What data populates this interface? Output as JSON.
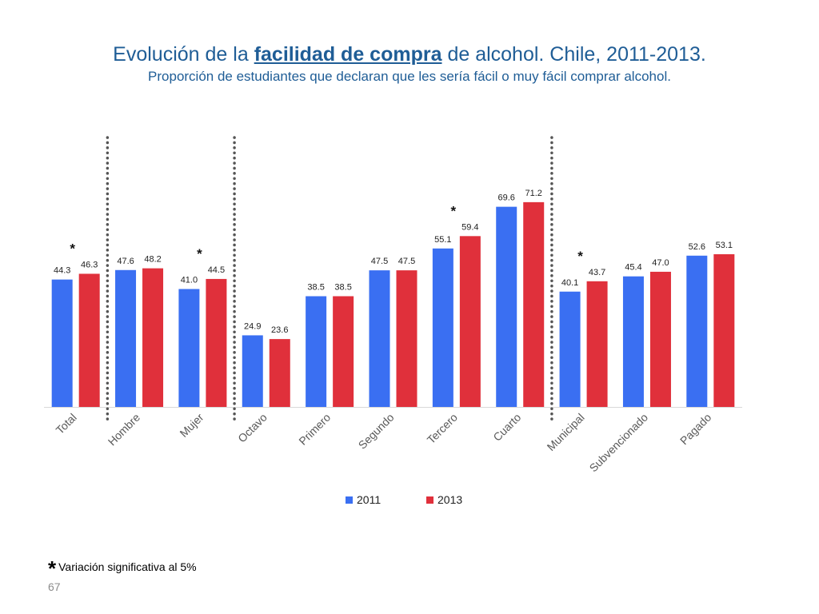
{
  "slide": {
    "title_pre": "Evolución de la",
    "title_emph": "facilidad de compra",
    "title_post": "de alcohol. Chile, 2011-2013.",
    "subtitle": "Proporción de estudiantes que declaran que les sería fácil o muy fácil comprar alcohol.",
    "footnote_star": "*",
    "footnote": "Variación significativa al 5%",
    "page_number": "67"
  },
  "chart_data": {
    "type": "bar",
    "categories": [
      "Total",
      "Hombre",
      "Mujer",
      "Octavo",
      "Primero",
      "Segundo",
      "Tercero",
      "Cuarto",
      "Municipal",
      "Subvencionado",
      "Pagado"
    ],
    "series": [
      {
        "name": "2011",
        "color": "#3a6ff2",
        "values": [
          44.3,
          47.6,
          41.0,
          24.9,
          38.5,
          47.5,
          55.1,
          69.6,
          40.1,
          45.4,
          52.6
        ],
        "labels": [
          "44.3",
          "47.6",
          "41.0",
          "24.9",
          "38.5",
          "47.5",
          "55.1",
          "69.6",
          "40.1",
          "45.4",
          "52.6"
        ]
      },
      {
        "name": "2013",
        "color": "#e0303b",
        "values": [
          46.3,
          48.2,
          44.5,
          23.6,
          38.5,
          47.5,
          59.4,
          71.2,
          43.7,
          47.0,
          53.1
        ],
        "labels": [
          "46.3",
          "48.2",
          "44.5",
          "23.6",
          "38.5",
          "47.5",
          "59.4",
          "71.2",
          "43.7",
          "47.0",
          "53.1"
        ]
      }
    ],
    "significant": [
      true,
      false,
      true,
      false,
      false,
      false,
      true,
      false,
      true,
      false,
      false
    ],
    "significance_marker": "*",
    "group_separators_after": [
      "Total",
      "Mujer",
      "Cuarto"
    ],
    "ylim": [
      0,
      100
    ],
    "gridlines": false,
    "y_axis_shown": false,
    "legend_position": "bottom",
    "xtick_rotation": "-45"
  }
}
